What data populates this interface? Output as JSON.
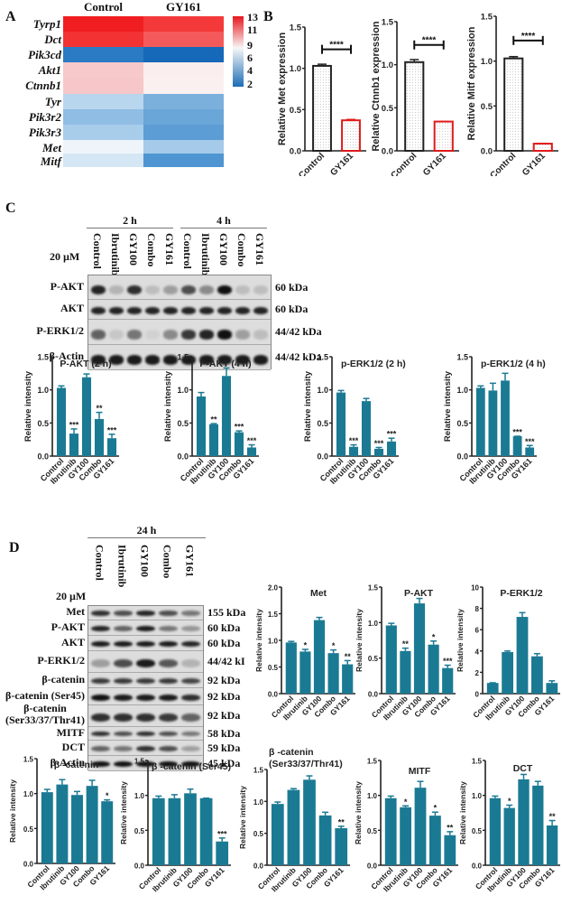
{
  "panels": {
    "A": {
      "letter": "A"
    },
    "B": {
      "letter": "B"
    },
    "C": {
      "letter": "C"
    },
    "D": {
      "letter": "D"
    }
  },
  "heatmap": {
    "columns": [
      "Control",
      "GY161"
    ],
    "rows": [
      "Tyrp1",
      "Dct",
      "Pik3cd",
      "Akt1",
      "Ctnnb1",
      "Tyr",
      "Pik3r2",
      "Pik3r3",
      "Met",
      "Mitf"
    ],
    "colors": [
      [
        "#f01e20",
        "#f4393a"
      ],
      [
        "#f23233",
        "#f45a5b"
      ],
      [
        "#2a7ac4",
        "#1668b8"
      ],
      [
        "#f7c9ca",
        "#fbeeee"
      ],
      [
        "#f7c6c8",
        "#fbf0f0"
      ],
      [
        "#b8d6ee",
        "#7cb0dc"
      ],
      [
        "#8fbde3",
        "#6aa6d8"
      ],
      [
        "#a8cdeb",
        "#5d9dd5"
      ],
      [
        "#eef4fa",
        "#a5caea"
      ],
      [
        "#d5e6f5",
        "#4f95d2"
      ]
    ],
    "colorbar": {
      "ticks": [
        "13",
        "11",
        "9",
        "6",
        "4",
        "2"
      ],
      "min": 2,
      "max": 13,
      "high": "#e8171c",
      "mid": "#f7f7f7",
      "low": "#1b6db6"
    }
  },
  "western_C": {
    "concentration": "20 µM",
    "timepoints": [
      "2 h",
      "4 h"
    ],
    "lanes": [
      "Control",
      "Ibrutinib",
      "GY100",
      "Combo",
      "GY161",
      "Control",
      "Ibrutinib",
      "GY100",
      "Combo",
      "GY161"
    ],
    "rows": [
      {
        "label": "P-AKT",
        "kda": "60 kDa"
      },
      {
        "label": "AKT",
        "kda": "60 kDa"
      },
      {
        "label": "P-ERK1/2",
        "kda": "44/42 kDa"
      },
      {
        "label": "β-Actin",
        "kda": "44/42 kDa"
      }
    ]
  },
  "western_D": {
    "concentration": "20 µM",
    "timepoint": "24 h",
    "lanes": [
      "Control",
      "Ibrutinib",
      "GY100",
      "Combo",
      "GY161"
    ],
    "rows": [
      {
        "label": "Met",
        "kda": "155 kDa"
      },
      {
        "label": "P-AKT",
        "kda": "60 kDa"
      },
      {
        "label": "AKT",
        "kda": "60 kDa"
      },
      {
        "label": "P-ERK1/2",
        "kda": "44/42 kI"
      },
      {
        "label": "β-catenin",
        "kda": "92 kDa"
      },
      {
        "label": "β-catenin (Ser45)",
        "kda": "92 kDa"
      },
      {
        "label": "β-catenin\n(Ser33/37/Thr41)",
        "kda": "92 kDa"
      },
      {
        "label": "MITF",
        "kda": "58 kDa"
      },
      {
        "label": "DCT",
        "kda": "59 kDa"
      },
      {
        "label": "β-Actin",
        "kda": "45 kDa"
      }
    ]
  },
  "chart_data": [
    {
      "id": "B1",
      "type": "bar",
      "title": "",
      "ylabel": "Relative Met expression",
      "xlabel": "",
      "categories": [
        "Control",
        "GY161"
      ],
      "values": [
        1.03,
        0.37
      ],
      "errors": [
        0.02,
        0.01
      ],
      "ylim": [
        0,
        1.5
      ],
      "yticks": [
        "0.0",
        "0.5",
        "1.0",
        "1.5"
      ],
      "significance": "****",
      "bar_colors": [
        "#222222",
        "#e01a1a"
      ],
      "style": "dotted-fill outline"
    },
    {
      "id": "B2",
      "type": "bar",
      "title": "",
      "ylabel": "Relative Ctnnb1 expression",
      "xlabel": "",
      "categories": [
        "Control",
        "GY161"
      ],
      "values": [
        1.03,
        0.34
      ],
      "errors": [
        0.03,
        0.0
      ],
      "ylim": [
        0,
        1.5
      ],
      "yticks": [
        "0.0",
        "0.5",
        "1.0",
        "1.5"
      ],
      "significance": "****",
      "bar_colors": [
        "#222222",
        "#e01a1a"
      ],
      "style": "dotted-fill outline"
    },
    {
      "id": "B3",
      "type": "bar",
      "title": "",
      "ylabel": "Relative Mitf expression",
      "xlabel": "",
      "categories": [
        "Control",
        "GY161"
      ],
      "values": [
        1.03,
        0.08
      ],
      "errors": [
        0.02,
        0.0
      ],
      "ylim": [
        0,
        1.5
      ],
      "yticks": [
        "0.0",
        "0.5",
        "1.0",
        "1.5"
      ],
      "significance": "****",
      "bar_colors": [
        "#222222",
        "#e01a1a"
      ],
      "style": "dotted-fill outline"
    },
    {
      "id": "C1",
      "type": "bar",
      "title": "P-AKT (2 h)",
      "ylabel": "Relative intensity",
      "xlabel": "",
      "categories": [
        "Control",
        "Ibrutinib",
        "GY100",
        "Combo",
        "GY161"
      ],
      "values": [
        1.03,
        0.34,
        1.19,
        0.56,
        0.27
      ],
      "errors": [
        0.03,
        0.07,
        0.05,
        0.1,
        0.06
      ],
      "stars": [
        "",
        "***",
        "",
        "**",
        "***"
      ],
      "ylim": [
        0,
        1.5
      ],
      "yticks": [
        "0.0",
        "0.5",
        "1.0",
        "1.5"
      ]
    },
    {
      "id": "C2",
      "type": "bar",
      "title": "P-AKT (4 h)",
      "ylabel": "Relative intensity",
      "xlabel": "",
      "categories": [
        "Control",
        "Ibrutinib",
        "GY100",
        "Combo",
        "GY161"
      ],
      "values": [
        0.9,
        0.48,
        1.21,
        0.36,
        0.13
      ],
      "errors": [
        0.06,
        0.01,
        0.12,
        0.02,
        0.04
      ],
      "stars": [
        "",
        "**",
        "",
        "***",
        "***"
      ],
      "ylim": [
        0,
        1.5
      ],
      "yticks": [
        "0.0",
        "0.5",
        "1.0",
        "1.5"
      ]
    },
    {
      "id": "C3",
      "type": "bar",
      "title": "p-ERK1/2 (2 h)",
      "ylabel": "Relative intensity",
      "xlabel": "",
      "categories": [
        "Control",
        "Ibrutinib",
        "GY100",
        "Combo",
        "GY161"
      ],
      "values": [
        0.96,
        0.14,
        0.83,
        0.11,
        0.22
      ],
      "errors": [
        0.03,
        0.03,
        0.04,
        0.02,
        0.05
      ],
      "stars": [
        "",
        "***",
        "",
        "***",
        "***"
      ],
      "ylim": [
        0,
        1.5
      ],
      "yticks": [
        "0.0",
        "0.5",
        "1.0",
        "1.5"
      ]
    },
    {
      "id": "C4",
      "type": "bar",
      "title": "p-ERK1/2 (4 h)",
      "ylabel": "Relative intensity",
      "xlabel": "",
      "categories": [
        "Control",
        "Ibrutinib",
        "GY100",
        "Combo",
        "GY161"
      ],
      "values": [
        1.03,
        0.99,
        1.14,
        0.3,
        0.13
      ],
      "errors": [
        0.03,
        0.11,
        0.11,
        0.0,
        0.03
      ],
      "stars": [
        "",
        "",
        "",
        "***",
        "***"
      ],
      "ylim": [
        0,
        1.5
      ],
      "yticks": [
        "0.0",
        "0.5",
        "1.0",
        "1.5"
      ]
    },
    {
      "id": "D1",
      "type": "bar",
      "title": "Met",
      "ylabel": "Relative intensity",
      "xlabel": "",
      "categories": [
        "Control",
        "Ibrutinib",
        "GY100",
        "Combo",
        "GY161"
      ],
      "values": [
        0.96,
        0.79,
        1.38,
        0.76,
        0.55
      ],
      "errors": [
        0.02,
        0.04,
        0.05,
        0.06,
        0.07
      ],
      "stars": [
        "",
        "*",
        "",
        "*",
        "**"
      ],
      "ylim": [
        0,
        2.0
      ],
      "yticks": [
        "0.0",
        "0.5",
        "1.0",
        "1.5",
        "2.0"
      ]
    },
    {
      "id": "D2",
      "type": "bar",
      "title": "P-AKT",
      "ylabel": "Relative intensity",
      "xlabel": "",
      "categories": [
        "Control",
        "Ibrutinib",
        "GY100",
        "Combo",
        "GY161"
      ],
      "values": [
        0.96,
        0.6,
        1.27,
        0.69,
        0.36
      ],
      "errors": [
        0.03,
        0.04,
        0.07,
        0.05,
        0.04
      ],
      "stars": [
        "",
        "**",
        "",
        "*",
        "***"
      ],
      "ylim": [
        0,
        1.5
      ],
      "yticks": [
        "0.0",
        "0.5",
        "1.0",
        "1.5"
      ]
    },
    {
      "id": "D3",
      "type": "bar",
      "title": "P-ERK1/2",
      "ylabel": "Relative intensity",
      "xlabel": "",
      "categories": [
        "Control",
        "Ibrutinib",
        "GY100",
        "Combo",
        "GY161"
      ],
      "values": [
        1.0,
        3.9,
        7.2,
        3.5,
        1.0
      ],
      "errors": [
        0.02,
        0.1,
        0.4,
        0.25,
        0.2
      ],
      "stars": [
        "",
        "",
        "",
        "",
        ""
      ],
      "ylim": [
        0,
        10
      ],
      "yticks": [
        "0",
        "2",
        "4",
        "6",
        "8",
        "10"
      ]
    },
    {
      "id": "D4",
      "type": "bar",
      "title": "β -catenin",
      "ylabel": "Relative intensity",
      "xlabel": "",
      "categories": [
        "Control",
        "Ibrutinib",
        "GY100",
        "Combo",
        "GY161"
      ],
      "values": [
        1.02,
        1.13,
        0.98,
        1.11,
        0.89
      ],
      "errors": [
        0.04,
        0.07,
        0.05,
        0.08,
        0.02
      ],
      "stars": [
        "",
        "",
        "",
        "",
        "*"
      ],
      "ylim": [
        0,
        1.5
      ],
      "yticks": [
        "0.0",
        "0.5",
        "1.0",
        "1.5"
      ]
    },
    {
      "id": "D5",
      "type": "bar",
      "title": "β -catenin (Ser45)",
      "ylabel": "Relative intensity",
      "xlabel": "",
      "categories": [
        "Control",
        "Ibrutinib",
        "GY100",
        "Combo",
        "GY161"
      ],
      "values": [
        0.96,
        0.96,
        1.03,
        0.96,
        0.34
      ],
      "errors": [
        0.03,
        0.05,
        0.06,
        0.0,
        0.05
      ],
      "stars": [
        "",
        "",
        "",
        "",
        "***"
      ],
      "ylim": [
        0,
        1.5
      ],
      "yticks": [
        "0.0",
        "0.5",
        "1.0",
        "1.5"
      ]
    },
    {
      "id": "D6",
      "type": "bar",
      "title": "β -catenin\n(Ser33/37/Thr41)",
      "ylabel": "Relative intensity",
      "xlabel": "",
      "categories": [
        "Control",
        "Ibrutinib",
        "GY100",
        "Combo",
        "GY161"
      ],
      "values": [
        0.96,
        1.18,
        1.34,
        0.78,
        0.58
      ],
      "errors": [
        0.03,
        0.02,
        0.06,
        0.05,
        0.03
      ],
      "stars": [
        "",
        "",
        "",
        "",
        "**"
      ],
      "ylim": [
        0,
        1.5
      ],
      "yticks": [
        "0.0",
        "0.5",
        "1.0",
        "1.5"
      ]
    },
    {
      "id": "D7",
      "type": "bar",
      "title": "MITF",
      "ylabel": "Relative intensity",
      "xlabel": "",
      "categories": [
        "Control",
        "Ibrutinib",
        "GY100",
        "Combo",
        "GY161"
      ],
      "values": [
        0.96,
        0.83,
        1.11,
        0.71,
        0.43
      ],
      "errors": [
        0.03,
        0.02,
        0.09,
        0.05,
        0.05
      ],
      "stars": [
        "",
        "*",
        "",
        "*",
        "**"
      ],
      "ylim": [
        0,
        1.5
      ],
      "yticks": [
        "0.0",
        "0.5",
        "1.0",
        "1.5"
      ]
    },
    {
      "id": "D8",
      "type": "bar",
      "title": "DCT",
      "ylabel": "Relative intensity",
      "xlabel": "",
      "categories": [
        "Control",
        "Ibrutinib",
        "GY100",
        "Combo",
        "GY161"
      ],
      "values": [
        0.96,
        0.82,
        1.23,
        1.14,
        0.57
      ],
      "errors": [
        0.03,
        0.04,
        0.07,
        0.06,
        0.07
      ],
      "stars": [
        "",
        "*",
        "",
        "",
        "**"
      ],
      "ylim": [
        0,
        1.5
      ],
      "yticks": [
        "0.0",
        "0.5",
        "1.0",
        "1.5"
      ]
    }
  ],
  "bar_color": "#1b7a93"
}
